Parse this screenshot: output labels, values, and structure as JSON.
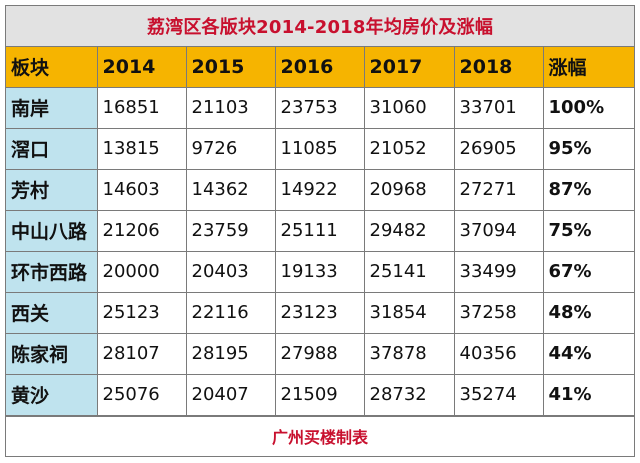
{
  "title": "荔湾区各版块2014-2018年均房价及涨幅",
  "headers": [
    "板块",
    "2014",
    "2015",
    "2016",
    "2017",
    "2018",
    "涨幅"
  ],
  "rows": [
    {
      "district": "南岸",
      "values": [
        "16851",
        "21103",
        "23753",
        "31060",
        "33701"
      ],
      "growth": "100%"
    },
    {
      "district": "滘口",
      "values": [
        "13815",
        "9726",
        "11085",
        "21052",
        "26905"
      ],
      "growth": "95%"
    },
    {
      "district": "芳村",
      "values": [
        "14603",
        "14362",
        "14922",
        "20968",
        "27271"
      ],
      "growth": "87%"
    },
    {
      "district": "中山八路",
      "values": [
        "21206",
        "23759",
        "25111",
        "29482",
        "37094"
      ],
      "growth": "75%"
    },
    {
      "district": "环市西路",
      "values": [
        "20000",
        "20403",
        "19133",
        "25141",
        "33499"
      ],
      "growth": "67%"
    },
    {
      "district": "西关",
      "values": [
        "25123",
        "22116",
        "23123",
        "31854",
        "37258"
      ],
      "growth": "48%"
    },
    {
      "district": "陈家祠",
      "values": [
        "28107",
        "28195",
        "27988",
        "37878",
        "40356"
      ],
      "growth": "44%"
    },
    {
      "district": "黄沙",
      "values": [
        "25076",
        "20407",
        "21509",
        "28732",
        "35274"
      ],
      "growth": "41%"
    }
  ],
  "footer": "广州买楼制表",
  "colors": {
    "title_text": "#c8102e",
    "title_bg": "#e2e2e2",
    "header_bg": "#f6b400",
    "district_bg": "#bfe3ee",
    "footer_text": "#c8102e"
  }
}
